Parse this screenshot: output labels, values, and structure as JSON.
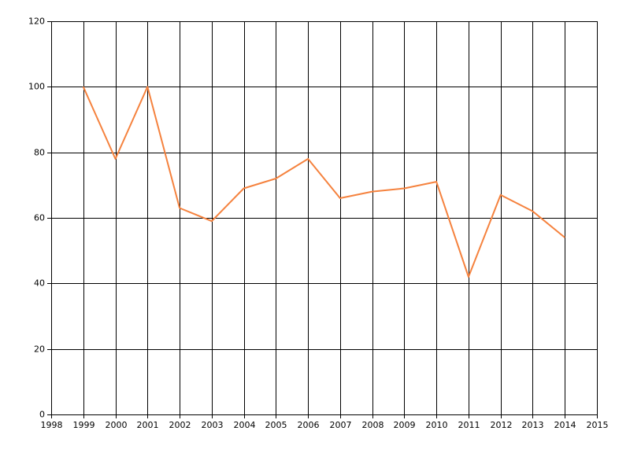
{
  "chart_data": {
    "type": "line",
    "x": [
      1999,
      2000,
      2001,
      2002,
      2003,
      2004,
      2005,
      2006,
      2007,
      2008,
      2009,
      2010,
      2011,
      2012,
      2013,
      2014
    ],
    "series": [
      {
        "color": "#f5823e",
        "values": [
          100,
          78,
          100,
          63,
          59,
          69,
          72,
          78,
          66,
          68,
          69,
          71,
          42,
          67,
          62,
          54
        ]
      }
    ],
    "xlim": [
      1998,
      2015
    ],
    "xticks": [
      1998,
      1999,
      2000,
      2001,
      2002,
      2003,
      2004,
      2005,
      2006,
      2007,
      2008,
      2009,
      2010,
      2011,
      2012,
      2013,
      2014,
      2015
    ],
    "ylim": [
      0,
      120
    ],
    "yticks": [
      0,
      20,
      40,
      60,
      80,
      100,
      120
    ],
    "grid": true
  }
}
